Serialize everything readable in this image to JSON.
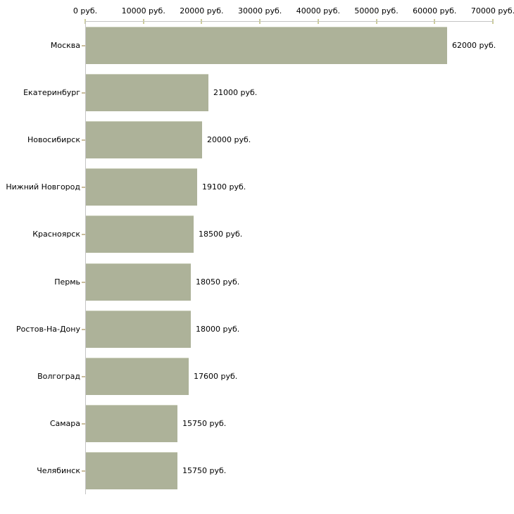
{
  "chart_data": {
    "type": "bar",
    "orientation": "horizontal",
    "title": "",
    "xlabel": "",
    "ylabel": "",
    "unit": "руб.",
    "grid": false,
    "legend_position": "none",
    "categories": [
      "Москва",
      "Екатеринбург",
      "Новосибирск",
      "Нижний Новгород",
      "Красноярск",
      "Пермь",
      "Ростов-На-Дону",
      "Волгоград",
      "Самара",
      "Челябинск"
    ],
    "values": [
      62000,
      21000,
      20000,
      19100,
      18500,
      18050,
      18000,
      17600,
      15750,
      15750
    ],
    "value_labels": [
      "62000 руб.",
      "21000 руб.",
      "20000 руб.",
      "19100 руб.",
      "18500 руб.",
      "18050 руб.",
      "18000 руб.",
      "17600 руб.",
      "15750 руб.",
      "15750 руб."
    ],
    "x_axis": {
      "position": "top",
      "min": 0,
      "max": 70000,
      "step": 10000,
      "tick_labels": [
        "0 руб.",
        "10000 руб.",
        "20000 руб.",
        "30000 руб.",
        "40000 руб.",
        "50000 руб.",
        "60000 руб.",
        "70000 руб."
      ]
    },
    "colors": {
      "bar_fill": "#adb299",
      "bar_highlight": "#ccd0bc",
      "axis_line": "#c4c4c4",
      "axis_tick": "#cdcd9b",
      "category_tick": "#c9bc9b",
      "text": "#000000",
      "background": "#ffffff"
    }
  }
}
